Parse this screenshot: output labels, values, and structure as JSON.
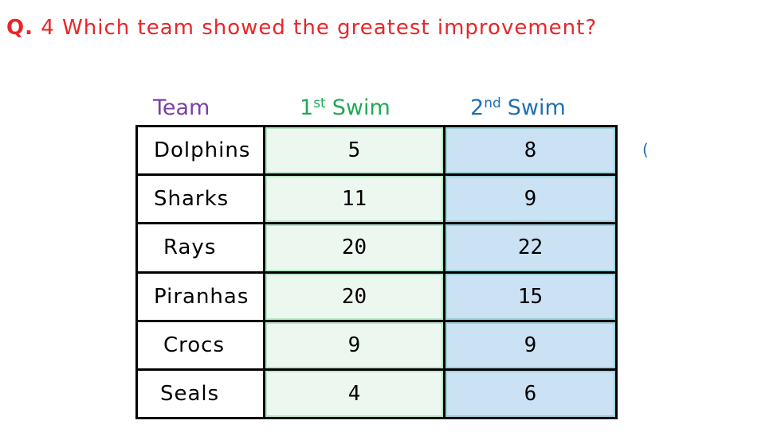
{
  "question": {
    "number": "Q.",
    "text": "4 Which team showed the greatest improvement?"
  },
  "headers": {
    "team": "Team",
    "first_num": "1",
    "first_sup": "st",
    "first_word": "Swim",
    "second_num": "2",
    "second_sup": "nd",
    "second_word": "Swim"
  },
  "rows": [
    {
      "team": "Dolphins",
      "first": "5",
      "second": "8"
    },
    {
      "team": "Sharks",
      "first": "11",
      "second": "9"
    },
    {
      "team": "Rays",
      "first": "20",
      "second": "22"
    },
    {
      "team": "Piranhas",
      "first": "20",
      "second": "15"
    },
    {
      "team": "Crocs",
      "first": "9",
      "second": "9"
    },
    {
      "team": "Seals",
      "first": "4",
      "second": "6"
    }
  ],
  "margin_mark": "(",
  "colors": {
    "question": "#e8262a",
    "team_header": "#7b3fa6",
    "first_header": "#1faa55",
    "second_header": "#1f6fb0",
    "first_column_fill": "#ecf8ef",
    "second_column_fill": "#cbe1f4"
  }
}
